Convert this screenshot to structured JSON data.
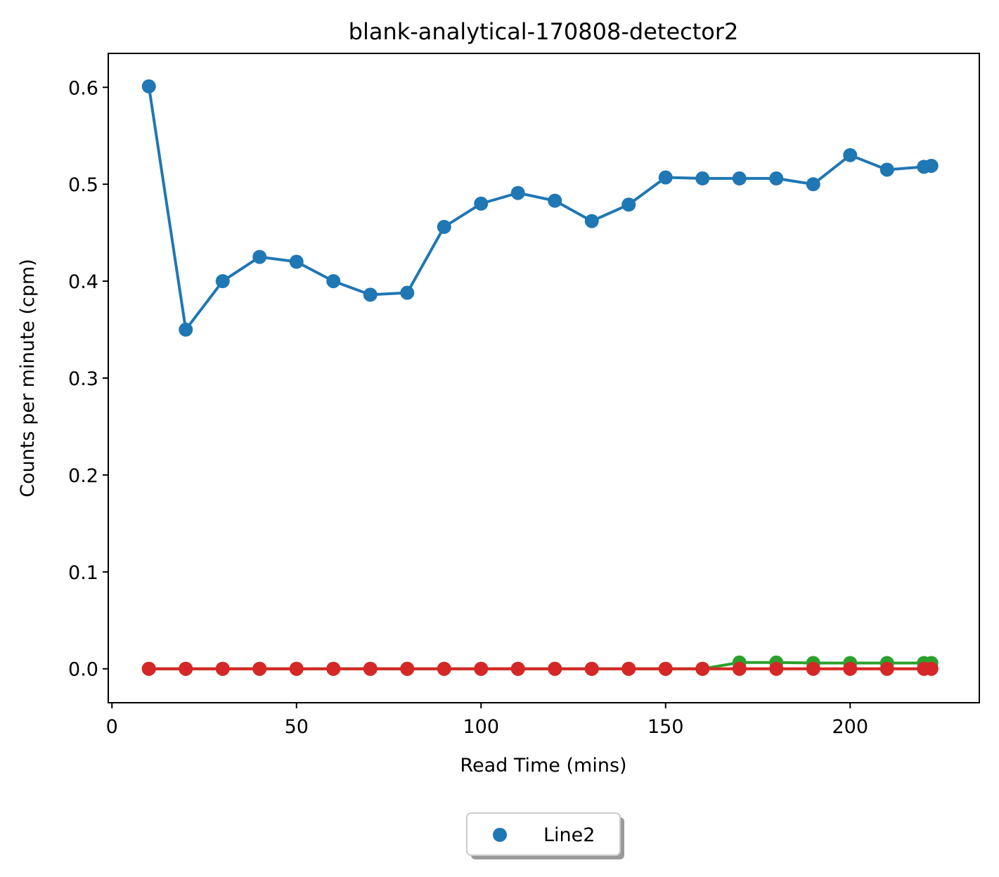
{
  "chart_data": {
    "type": "line",
    "title": "blank-analytical-170808-detector2",
    "xlabel": "Read Time (mins)",
    "ylabel": "Counts per minute (cpm)",
    "xlim": [
      -1,
      235
    ],
    "ylim": [
      -0.035,
      0.635
    ],
    "xticks": [
      0,
      50,
      100,
      150,
      200
    ],
    "xtick_labels": [
      "0",
      "50",
      "100",
      "150",
      "200"
    ],
    "yticks": [
      0.0,
      0.1,
      0.2,
      0.3,
      0.4,
      0.5,
      0.6
    ],
    "ytick_labels": [
      "0.0",
      "0.1",
      "0.2",
      "0.3",
      "0.4",
      "0.5",
      "0.6"
    ],
    "grid": false,
    "legend": {
      "placement": "bottom-center, below plot",
      "entries": [
        {
          "label": "Line2",
          "color": "#1f77b4"
        }
      ]
    },
    "x": [
      10,
      20,
      30,
      40,
      50,
      60,
      70,
      80,
      90,
      100,
      110,
      120,
      130,
      140,
      150,
      160,
      170,
      180,
      190,
      200,
      210,
      220,
      222
    ],
    "series": [
      {
        "color": "#1f77b4",
        "values": [
          0.601,
          0.35,
          0.4,
          0.425,
          0.42,
          0.4,
          0.386,
          0.388,
          0.456,
          0.48,
          0.491,
          0.483,
          0.462,
          0.479,
          0.507,
          0.506,
          0.506,
          0.506,
          0.5,
          0.53,
          0.515,
          0.518,
          0.519
        ]
      },
      {
        "color": "#ff7f0e",
        "values": [
          0,
          0,
          0,
          0,
          0,
          0,
          0,
          0,
          0,
          0,
          0,
          0,
          0,
          0,
          0,
          0,
          0,
          0,
          0,
          0,
          0,
          0,
          0
        ]
      },
      {
        "color": "#2ca02c",
        "values": [
          0,
          0,
          0,
          0,
          0,
          0,
          0,
          0,
          0,
          0,
          0,
          0,
          0,
          0,
          0,
          0,
          0.0065,
          0.0065,
          0.006,
          0.006,
          0.006,
          0.006,
          0.006
        ]
      },
      {
        "color": "#d62728",
        "values": [
          0,
          0,
          0,
          0,
          0,
          0,
          0,
          0,
          0,
          0,
          0,
          0,
          0,
          0,
          0,
          0,
          0,
          0,
          0,
          0,
          0,
          0,
          0
        ]
      }
    ]
  }
}
